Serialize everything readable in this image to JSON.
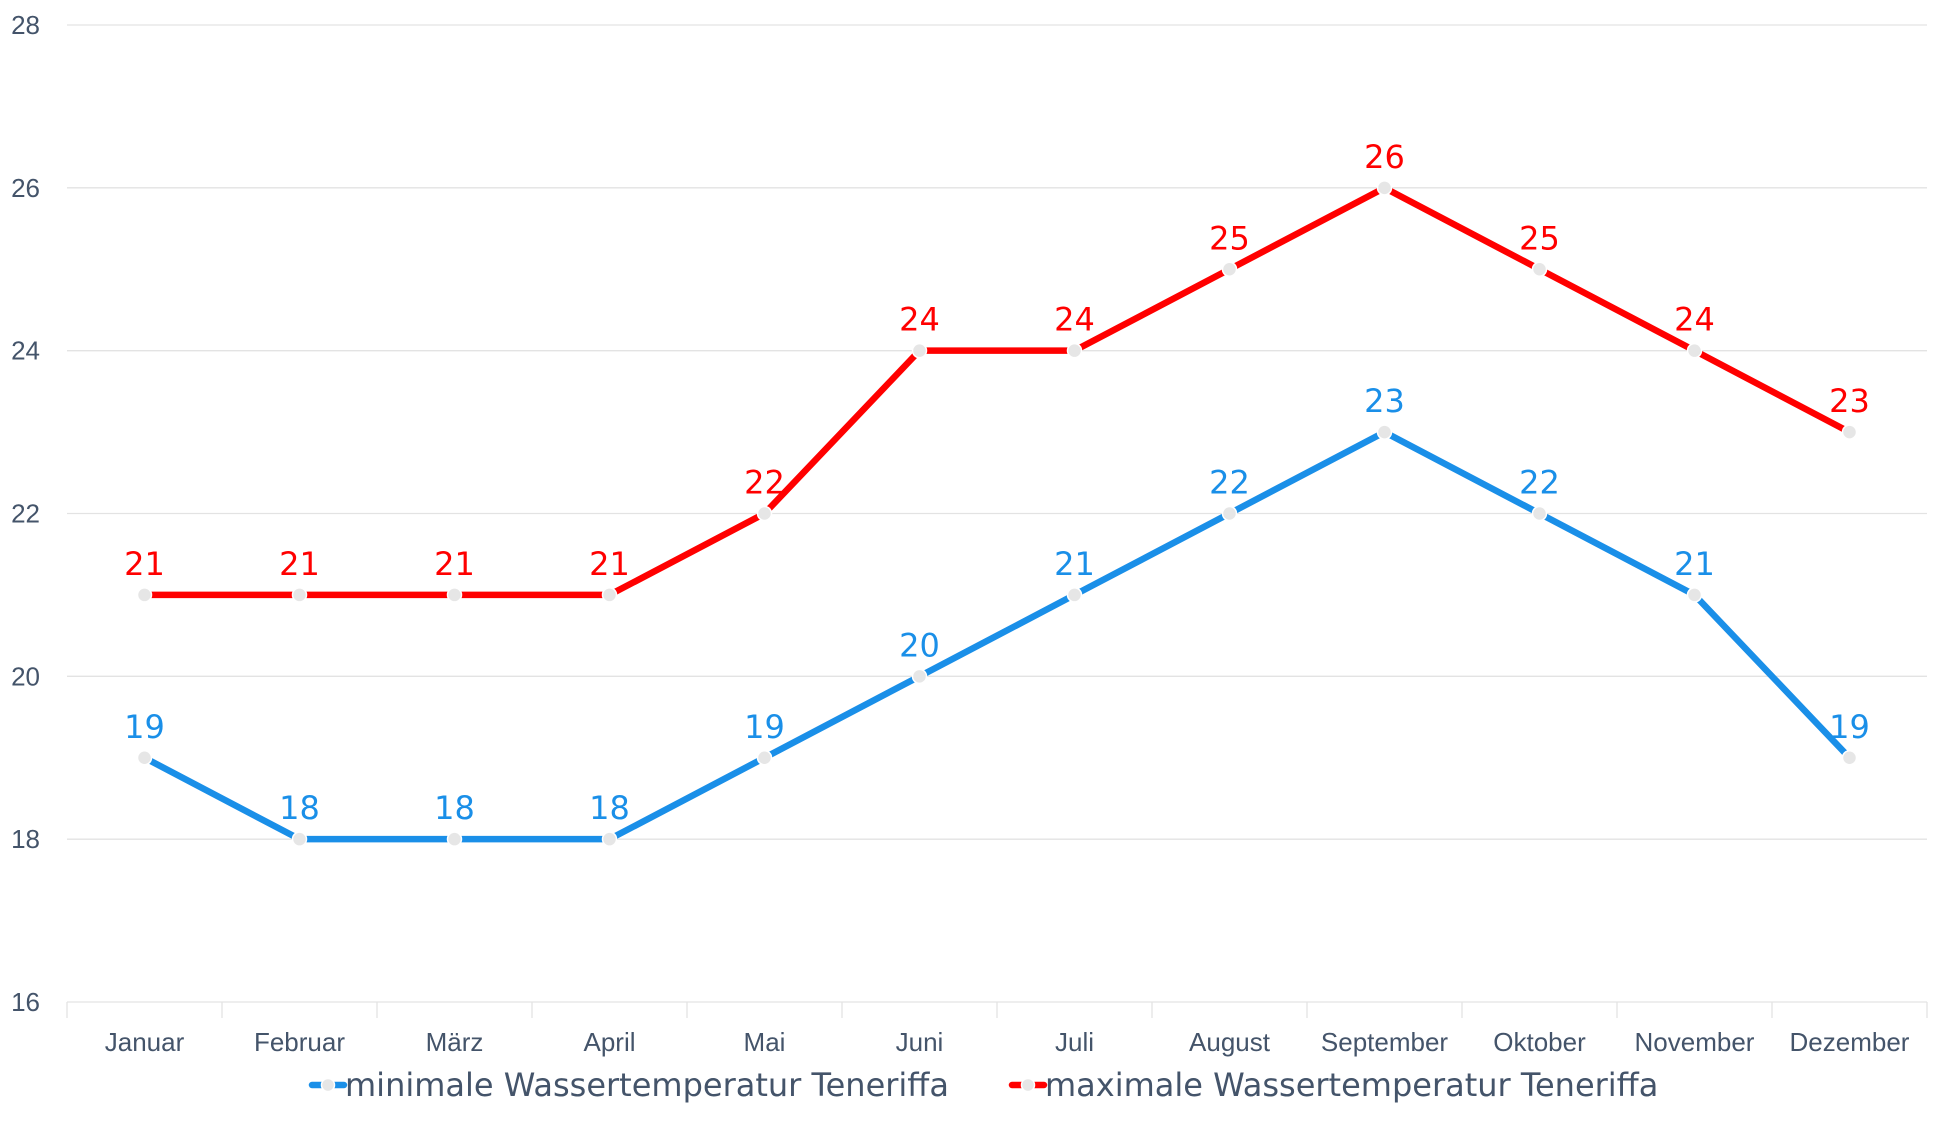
{
  "chart_data": {
    "type": "line",
    "categories": [
      "Januar",
      "Februar",
      "März",
      "April",
      "Mai",
      "Juni",
      "Juli",
      "August",
      "September",
      "Oktober",
      "November",
      "Dezember"
    ],
    "ylim": [
      16,
      28
    ],
    "yticks": [
      16,
      18,
      20,
      22,
      24,
      26,
      28
    ],
    "grid": true,
    "legend_position": "bottom",
    "series": [
      {
        "name": "minimale Wassertemperatur Teneriffa",
        "color": "#1a8fe8",
        "values": [
          19,
          18,
          18,
          18,
          19,
          20,
          21,
          22,
          23,
          22,
          21,
          19
        ]
      },
      {
        "name": "maximale Wassertemperatur Teneriffa",
        "color": "#ff0000",
        "values": [
          21,
          21,
          21,
          21,
          22,
          24,
          24,
          25,
          26,
          25,
          24,
          23
        ]
      }
    ],
    "colors": {
      "grid": "#e3e3e3",
      "axis_text": "#44546a",
      "marker_fill": "#e6e6e6",
      "marker_stroke": "#ffffff"
    }
  }
}
